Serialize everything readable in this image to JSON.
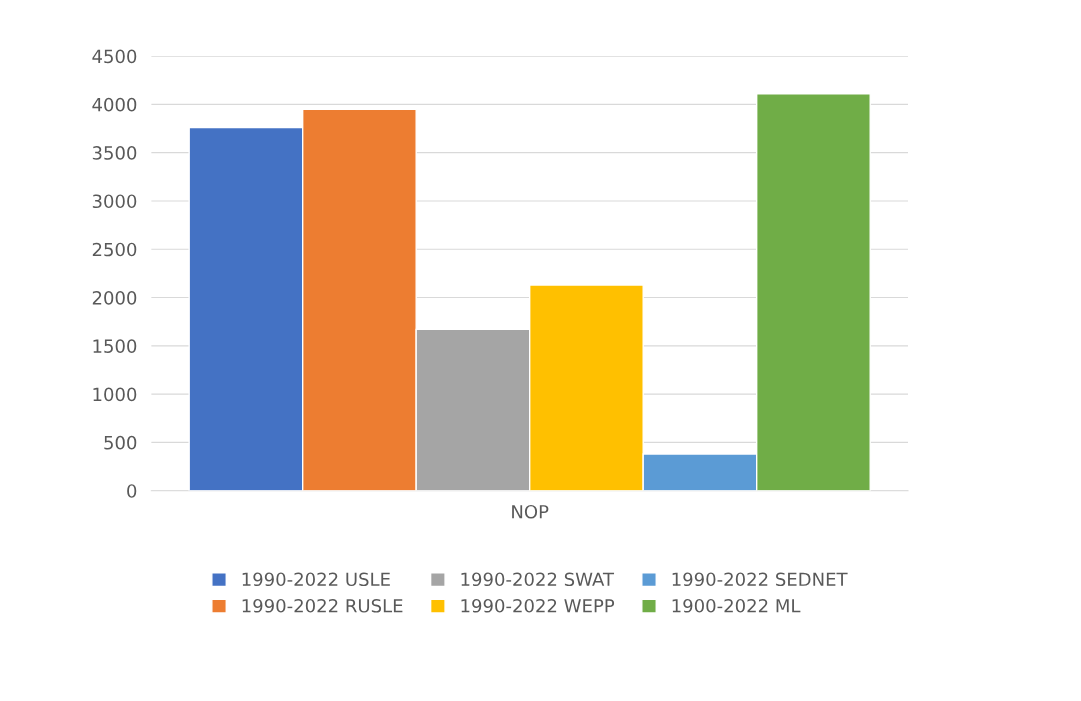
{
  "chart_data": {
    "type": "bar",
    "categories": [
      "NOP"
    ],
    "series": [
      {
        "name": "1990-2022 USLE",
        "color": "#4472c4",
        "values": [
          3760
        ]
      },
      {
        "name": "1990-2022 RUSLE",
        "color": "#ed7d31",
        "values": [
          3950
        ]
      },
      {
        "name": "1990-2022 SWAT",
        "color": "#a5a5a5",
        "values": [
          1670
        ]
      },
      {
        "name": "1990-2022 WEPP",
        "color": "#ffc000",
        "values": [
          2130
        ]
      },
      {
        "name": "1990-2022 SEDNET",
        "color": "#5b9bd5",
        "values": [
          380
        ]
      },
      {
        "name": "1900-2022 ML",
        "color": "#70ad47",
        "values": [
          4110
        ]
      }
    ],
    "ylim": [
      0,
      4500
    ],
    "yticks": [
      0,
      500,
      1000,
      1500,
      2000,
      2500,
      3000,
      3500,
      4000,
      4500
    ],
    "grid": "y",
    "legend": "bottom"
  }
}
